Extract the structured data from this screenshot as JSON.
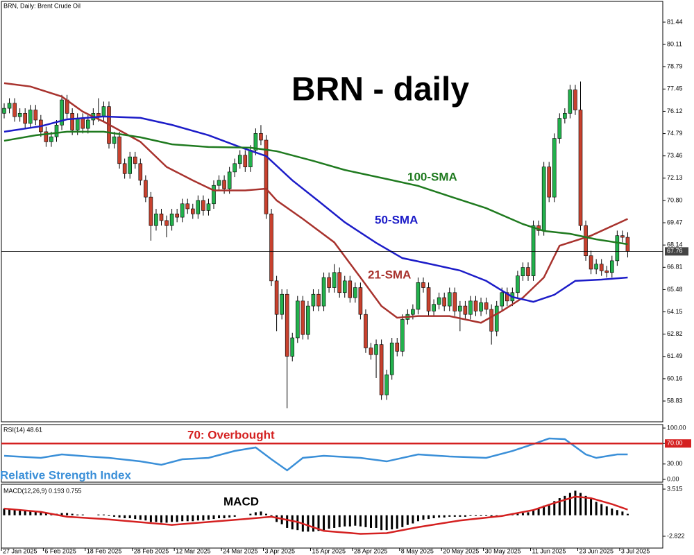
{
  "header": "BRN, Daily:  Brent Crude Oil",
  "chart_data": [
    {
      "type": "candlestick",
      "title": "BRN - daily",
      "up_color": "#22b14c",
      "down_color": "#c8412e",
      "open": [
        76.0,
        76.3,
        76.6,
        75.8,
        76.0,
        75.4,
        76.2,
        75.6,
        74.9,
        74.3,
        74.6,
        75.3,
        76.8,
        76.0,
        75.0,
        75.7,
        75.1,
        75.6,
        76.0,
        75.8,
        76.4,
        74.2,
        74.6,
        73.0,
        72.4,
        73.4,
        73.0,
        72.0,
        71.0,
        69.3,
        70.0,
        69.6,
        69.3,
        70.0,
        69.8,
        70.6,
        70.3,
        70.0,
        70.8,
        70.2,
        70.6,
        71.7,
        72.0,
        71.5,
        72.5,
        73.0,
        73.5,
        72.8,
        73.8,
        74.8,
        74.4,
        70.0,
        66.0,
        64.0,
        65.2,
        61.5,
        62.6,
        64.8,
        62.8,
        64.5,
        65.2,
        64.5,
        66.2,
        65.6,
        66.5,
        65.3,
        66.0,
        65.0,
        65.6,
        64.0,
        62.0,
        61.6,
        62.2,
        59.2,
        60.4,
        62.3,
        61.8,
        63.7,
        64.0,
        64.3,
        65.9,
        65.6,
        64.2,
        64.6,
        65.0,
        64.5,
        65.3,
        64.2,
        64.5,
        64.0,
        64.8,
        64.2,
        64.7,
        64.3,
        63.0,
        64.5,
        65.3,
        64.8,
        65.3,
        66.3,
        66.8,
        66.3,
        69.3,
        69.0,
        72.8,
        71.0,
        74.5,
        75.7,
        76.0,
        77.4,
        76.2,
        69.3,
        67.5,
        66.7,
        67.0,
        66.6,
        66.5,
        67.2,
        68.7,
        68.6
      ],
      "high": [
        76.6,
        76.9,
        76.9,
        76.3,
        76.3,
        76.5,
        76.5,
        75.9,
        75.2,
        74.9,
        75.6,
        77.1,
        77.1,
        76.3,
        76.0,
        76.0,
        75.9,
        76.3,
        76.9,
        76.7,
        76.7,
        74.9,
        74.9,
        73.3,
        73.7,
        73.7,
        73.3,
        72.3,
        71.3,
        70.3,
        70.3,
        69.9,
        70.3,
        70.3,
        70.9,
        70.9,
        70.6,
        71.1,
        71.1,
        70.9,
        72.0,
        72.3,
        72.3,
        72.8,
        73.3,
        73.8,
        73.8,
        74.1,
        75.1,
        75.3,
        74.7,
        70.3,
        66.3,
        65.5,
        65.5,
        62.9,
        65.1,
        65.1,
        64.8,
        65.5,
        65.5,
        66.5,
        66.5,
        67.0,
        66.8,
        66.3,
        66.3,
        65.9,
        65.9,
        64.3,
        62.3,
        62.5,
        62.5,
        60.7,
        62.6,
        62.6,
        64.0,
        64.3,
        64.6,
        66.2,
        66.2,
        65.9,
        64.9,
        65.3,
        65.3,
        65.6,
        65.6,
        64.8,
        64.8,
        65.1,
        65.1,
        65.0,
        65.0,
        64.6,
        64.8,
        65.6,
        65.6,
        65.6,
        66.6,
        67.1,
        67.1,
        69.6,
        69.6,
        73.1,
        73.1,
        74.8,
        76.0,
        76.3,
        77.7,
        77.7,
        77.9,
        69.6,
        67.8,
        67.3,
        67.3,
        66.9,
        67.5,
        69.0,
        69.0,
        68.9
      ],
      "low": [
        75.7,
        76.0,
        75.5,
        75.5,
        75.1,
        75.1,
        75.3,
        74.6,
        74.0,
        74.0,
        74.3,
        75.0,
        75.7,
        74.7,
        74.7,
        74.8,
        74.8,
        75.3,
        75.5,
        75.5,
        73.9,
        73.9,
        72.7,
        72.1,
        72.1,
        72.7,
        71.7,
        70.7,
        68.4,
        69.0,
        69.3,
        68.6,
        69.0,
        69.5,
        69.5,
        70.0,
        69.7,
        69.7,
        69.9,
        69.9,
        70.3,
        71.4,
        71.2,
        71.2,
        72.2,
        72.7,
        72.5,
        72.5,
        73.5,
        74.1,
        69.7,
        65.7,
        63.0,
        63.7,
        58.4,
        61.2,
        62.3,
        62.5,
        62.5,
        64.2,
        64.2,
        64.2,
        65.3,
        65.3,
        65.0,
        65.0,
        64.7,
        64.7,
        63.7,
        61.7,
        61.3,
        60.2,
        58.9,
        58.9,
        60.1,
        61.5,
        61.5,
        63.4,
        63.7,
        64.0,
        65.3,
        63.9,
        63.9,
        64.3,
        64.2,
        64.2,
        63.9,
        63.0,
        63.7,
        63.7,
        63.9,
        63.9,
        64.0,
        62.2,
        62.7,
        64.2,
        64.5,
        64.5,
        65.0,
        66.0,
        66.0,
        66.0,
        68.7,
        68.7,
        70.7,
        70.7,
        74.2,
        75.4,
        75.7,
        75.9,
        69.0,
        67.2,
        66.4,
        66.4,
        66.3,
        66.2,
        66.2,
        66.9,
        68.3,
        67.4
      ],
      "close": [
        76.3,
        76.6,
        75.8,
        76.0,
        75.4,
        76.2,
        75.6,
        74.9,
        74.3,
        74.6,
        75.3,
        76.8,
        76.0,
        75.0,
        75.7,
        75.1,
        75.6,
        76.0,
        75.8,
        76.4,
        74.2,
        74.6,
        73.0,
        72.4,
        73.4,
        73.0,
        72.0,
        71.0,
        69.3,
        70.0,
        69.6,
        69.3,
        70.0,
        69.8,
        70.6,
        70.3,
        70.0,
        70.8,
        70.2,
        70.6,
        71.7,
        72.0,
        71.5,
        72.5,
        73.0,
        73.5,
        72.8,
        73.8,
        74.8,
        74.4,
        70.0,
        66.0,
        64.0,
        65.2,
        61.5,
        62.6,
        64.8,
        62.8,
        64.5,
        65.2,
        64.5,
        66.2,
        65.6,
        66.5,
        65.3,
        66.0,
        65.0,
        65.6,
        64.0,
        62.0,
        61.6,
        62.2,
        59.2,
        60.4,
        62.3,
        61.8,
        63.7,
        64.0,
        64.3,
        65.9,
        65.6,
        64.2,
        64.6,
        65.0,
        64.5,
        65.3,
        64.2,
        64.5,
        64.0,
        64.8,
        64.2,
        64.7,
        64.3,
        63.0,
        64.5,
        65.3,
        64.8,
        65.3,
        66.3,
        66.8,
        66.3,
        69.3,
        69.0,
        72.8,
        71.0,
        74.5,
        75.7,
        76.0,
        77.4,
        76.2,
        69.3,
        67.5,
        66.7,
        67.0,
        66.6,
        66.5,
        67.2,
        68.7,
        68.6,
        67.76
      ],
      "overlays": [
        {
          "name": "21-SMA",
          "color": "#a8322d",
          "x": [
            0,
            5,
            11,
            15,
            19,
            26,
            31,
            36,
            40,
            46,
            50,
            52,
            57,
            63,
            68,
            72,
            75,
            79,
            85,
            91,
            95,
            99,
            103,
            106,
            112,
            119
          ],
          "values": [
            77.8,
            77.6,
            77.0,
            76.1,
            75.5,
            74.3,
            72.8,
            72.0,
            71.4,
            71.4,
            71.5,
            70.8,
            69.7,
            68.3,
            66.2,
            64.5,
            63.8,
            63.9,
            63.9,
            63.5,
            64.2,
            65.0,
            66.2,
            68.1,
            68.7,
            69.7
          ]
        },
        {
          "name": "50-SMA",
          "color": "#1c1cc8",
          "x": [
            0,
            7,
            12,
            19,
            26,
            32,
            39,
            45,
            50,
            55,
            60,
            65,
            71,
            76,
            81,
            87,
            92,
            97,
            101,
            105,
            109,
            114,
            119
          ],
          "values": [
            74.9,
            75.23,
            75.64,
            75.81,
            75.73,
            75.31,
            74.69,
            73.99,
            73.45,
            72.0,
            70.76,
            69.5,
            68.27,
            67.36,
            67.03,
            66.62,
            66.0,
            65.04,
            64.75,
            65.17,
            66.0,
            66.08,
            66.2
          ]
        },
        {
          "name": "100-SMA",
          "color": "#1f7a1f",
          "x": [
            0,
            6,
            12,
            19,
            26,
            32,
            39,
            47,
            52,
            59,
            65,
            73,
            79,
            85,
            92,
            99,
            103,
            108,
            113,
            119
          ],
          "values": [
            74.36,
            74.69,
            74.9,
            74.9,
            74.57,
            74.15,
            73.99,
            73.95,
            73.74,
            73.16,
            72.62,
            72.08,
            71.67,
            71.05,
            70.34,
            69.39,
            68.98,
            68.81,
            68.48,
            68.19
          ]
        }
      ],
      "ylim": [
        57.59,
        82.68
      ],
      "yticks": [
        81.44,
        80.11,
        78.79,
        77.45,
        76.12,
        74.79,
        73.46,
        72.13,
        {
          "value": 70.8,
          "label": "70.80"
        },
        69.47,
        68.14,
        66.81,
        65.48,
        64.15,
        62.82,
        61.49,
        60.16,
        58.83
      ],
      "last_price": 67.76,
      "xticks": [
        {
          "value": 0,
          "label": "27 Jan 2025"
        },
        {
          "value": 8,
          "label": "6 Feb 2025"
        },
        {
          "value": 16,
          "label": "18 Feb 2025"
        },
        {
          "value": 25,
          "label": "28 Feb 2025"
        },
        {
          "value": 33,
          "label": "12 Mar 2025"
        },
        {
          "value": 42,
          "label": "24 Mar 2025"
        },
        {
          "value": 50,
          "label": "3 Apr 2025"
        },
        {
          "value": 59,
          "label": "15 Apr 2025"
        },
        {
          "value": 67,
          "label": "28 Apr 2025"
        },
        {
          "value": 76,
          "label": "8 May 2025"
        },
        {
          "value": 84,
          "label": "20 May 2025"
        },
        {
          "value": 92,
          "label": "30 May 2025"
        },
        {
          "value": 101,
          "label": "11 Jun 2025"
        },
        {
          "value": 110,
          "label": "23 Jun 2025"
        },
        {
          "value": 118,
          "label": "3 Jul 2025"
        }
      ]
    },
    {
      "type": "line",
      "title": "RSI(14) 48.61",
      "series": [
        {
          "name": "Relative Strength Index",
          "color": "#3a8fd8",
          "x": [
            0,
            7,
            11,
            16,
            20,
            26,
            30,
            34,
            39,
            44,
            48,
            51,
            54,
            57,
            61,
            68,
            73,
            79,
            85,
            92,
            97,
            101,
            104,
            107,
            111,
            113,
            117,
            119
          ],
          "values": [
            45.9,
            41.9,
            48.6,
            44.6,
            41.9,
            35.1,
            28.4,
            39.2,
            41.9,
            55.4,
            62.2,
            39.2,
            17.6,
            41.9,
            45.9,
            41.9,
            35.1,
            48.6,
            44.6,
            41.9,
            55.4,
            68.9,
            79.7,
            78.4,
            48.6,
            41.9,
            48.6,
            48.61
          ]
        }
      ],
      "level": 70,
      "level_label": "70: Overbought",
      "level_color": "#d42020",
      "ylim": [
        -5.4,
        106.8
      ],
      "yticks": [
        {
          "value": 100,
          "label": "100.00"
        },
        {
          "value": 70,
          "label": "70.00"
        },
        {
          "value": 30,
          "label": "30.00"
        },
        {
          "value": 0,
          "label": "0.00"
        }
      ]
    },
    {
      "type": "macd",
      "title": "MACD(12,26,9) 0.193 0.755",
      "series": [
        {
          "name": "MACD",
          "color": "#000000",
          "values": [
            0.9,
            0.8,
            0.8,
            0.7,
            0.6,
            0.6,
            0.5,
            0.4,
            0.3,
            0.2,
            0.2,
            0.3,
            0.3,
            0.2,
            0.1,
            0.1,
            0.0,
            0.0,
            0.1,
            0.1,
            -0.1,
            -0.2,
            -0.3,
            -0.4,
            -0.4,
            -0.5,
            -0.6,
            -0.7,
            -0.9,
            -0.9,
            -1.0,
            -1.0,
            -0.9,
            -0.9,
            -0.8,
            -0.8,
            -0.8,
            -0.7,
            -0.7,
            -0.6,
            -0.5,
            -0.4,
            -0.4,
            -0.3,
            -0.2,
            0.0,
            0.0,
            0.2,
            0.4,
            0.5,
            0.2,
            -0.3,
            -0.9,
            -1.2,
            -1.7,
            -1.9,
            -2.0,
            -2.2,
            -2.2,
            -2.2,
            -2.1,
            -2.0,
            -1.8,
            -1.7,
            -1.6,
            -1.5,
            -1.5,
            -1.4,
            -1.5,
            -1.6,
            -1.7,
            -1.7,
            -2.0,
            -2.0,
            -1.9,
            -1.8,
            -1.6,
            -1.3,
            -1.1,
            -0.8,
            -0.6,
            -0.5,
            -0.4,
            -0.3,
            -0.3,
            -0.2,
            -0.2,
            -0.2,
            -0.2,
            -0.1,
            -0.1,
            -0.1,
            -0.1,
            -0.2,
            -0.2,
            -0.1,
            0.0,
            0.1,
            0.2,
            0.3,
            0.4,
            0.7,
            0.9,
            1.3,
            1.5,
            1.9,
            2.3,
            2.6,
            3.0,
            3.3,
            3.0,
            2.6,
            2.2,
            1.8,
            1.5,
            1.2,
            0.9,
            0.7,
            0.5,
            0.193
          ]
        },
        {
          "color": "#d42020",
          "x": [
            0,
            7,
            12,
            19,
            32,
            39,
            46,
            51,
            56,
            61,
            68,
            73,
            79,
            87,
            95,
            101,
            105,
            109,
            112,
            116,
            119
          ],
          "values": [
            0.9,
            0.45,
            -0.2,
            -0.5,
            -1.3,
            -0.9,
            -0.5,
            -0.2,
            -0.9,
            -2.1,
            -2.5,
            -2.4,
            -1.6,
            -0.7,
            -0.1,
            0.7,
            1.65,
            2.5,
            2.3,
            1.5,
            0.755
          ]
        }
      ],
      "ylim": [
        -4.41,
        4.17
      ],
      "yticks": [
        3.515,
        -2.822
      ]
    }
  ]
}
